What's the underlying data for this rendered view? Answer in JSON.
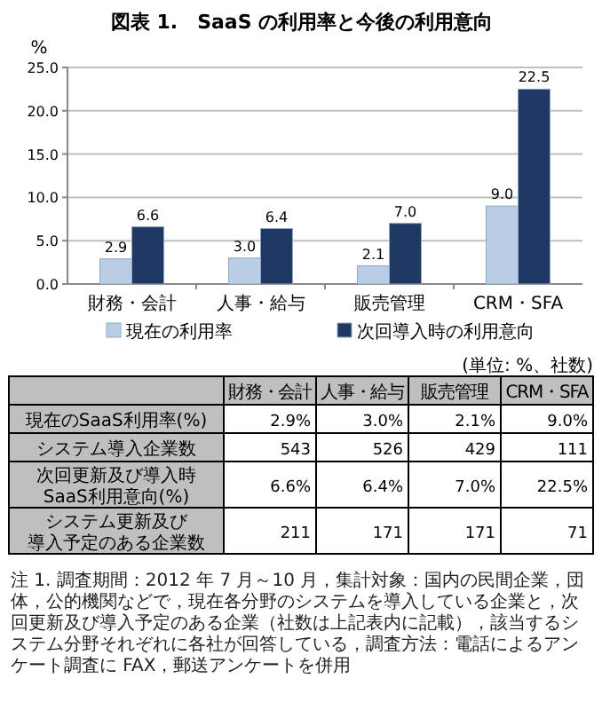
{
  "chart_data": [
    {
      "type": "bar",
      "title": "図表 1.　SaaS の利用率と今後の利用意向",
      "ylabel": "%",
      "categories": [
        "財務・会計",
        "人事・給与",
        "販売管理",
        "CRM・SFA"
      ],
      "series": [
        {
          "name": "現在の利用率",
          "color": "#b9cde5",
          "values": [
            2.9,
            3.0,
            2.1,
            9.0
          ],
          "value_labels": [
            "2.9",
            "3.0",
            "2.1",
            "9.0"
          ]
        },
        {
          "name": "次回導入時の利用意向",
          "color": "#1f3864",
          "values": [
            6.6,
            6.4,
            7.0,
            22.5
          ],
          "value_labels": [
            "6.6",
            "6.4",
            "7.0",
            "22.5"
          ]
        }
      ],
      "ylim": [
        0,
        25
      ],
      "yticks": [
        {
          "value": 0,
          "label": "0.0"
        },
        {
          "value": 5,
          "label": "5.0"
        },
        {
          "value": 10,
          "label": "10.0"
        },
        {
          "value": 15,
          "label": "15.0"
        },
        {
          "value": 20,
          "label": "20.0"
        },
        {
          "value": 25,
          "label": "25.0"
        }
      ],
      "grid": "y",
      "legend": "bottom"
    },
    {
      "type": "other",
      "categories": [
        "財務・会計",
        "人事・給与",
        "販売管理",
        "CRM・SFA"
      ],
      "series": [
        {
          "name": "現在のSaaS利用率(%)",
          "values": [
            2.9,
            3.0,
            2.1,
            9.0
          ],
          "value_labels": [
            "2.9%",
            "3.0%",
            "2.1%",
            "9.0%"
          ]
        },
        {
          "name": "システム導入企業数",
          "values": [
            543,
            526,
            429,
            111
          ],
          "value_labels": [
            "543",
            "526",
            "429",
            "111"
          ]
        },
        {
          "name": "次回更新及び導入時SaaS利用意向(%)",
          "values": [
            6.6,
            6.4,
            7.0,
            22.5
          ],
          "value_labels": [
            "6.6%",
            "6.4%",
            "7.0%",
            "22.5%"
          ]
        },
        {
          "name": "システム更新及び導入予定のある企業数",
          "values": [
            211,
            171,
            171,
            71
          ],
          "value_labels": [
            "211",
            "171",
            "171",
            "71"
          ]
        }
      ],
      "annotations": [
        "(単位: %、社数)",
        "注 1. 調査期間：2012 年 7 月～10 月，集計対象：国内の民間企業，団体，公的機関などで，現在各分野のシステムを導入している企業と，次回更新及び導入予定のある企業（社数は上記表内に記載），該当するシステム分野それぞれに各社が回答している，調査方法：電話によるアンケート調査に FAX，郵送アンケートを併用"
      ]
    }
  ]
}
